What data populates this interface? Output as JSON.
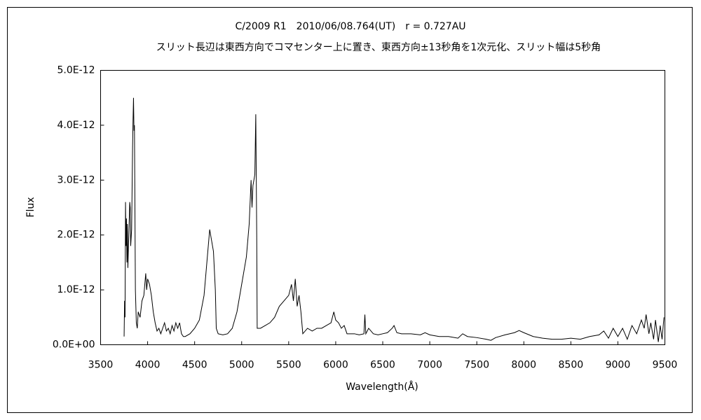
{
  "chart_data": {
    "type": "line",
    "title": "C/2009 R1　2010/06/08.764(UT)　r = 0.727AU",
    "subtitle": "スリット長辺は東西方向でコマセンター上に置き、東西方向±13秒角を1次元化、スリット幅は5秒角",
    "xlabel": "Wavelength(Å)",
    "ylabel": "Flux",
    "xlim": [
      3500,
      9500
    ],
    "xticks": [
      3500,
      4000,
      4500,
      5000,
      5500,
      6000,
      6500,
      7000,
      7500,
      8000,
      8500,
      9000,
      9500
    ],
    "ylim": [
      0,
      5e-12
    ],
    "yticks": [
      {
        "value": 0,
        "label": "0.0E+00"
      },
      {
        "value": 1e-12,
        "label": "1.0E-12"
      },
      {
        "value": 2e-12,
        "label": "2.0E-12"
      },
      {
        "value": 3e-12,
        "label": "3.0E-12"
      },
      {
        "value": 4e-12,
        "label": "4.0E-12"
      },
      {
        "value": 5e-12,
        "label": "5.0E-12"
      }
    ],
    "grid": false,
    "series": [
      {
        "color": "#000000",
        "x": [
          3750,
          3755,
          3760,
          3765,
          3770,
          3775,
          3780,
          3785,
          3790,
          3800,
          3810,
          3815,
          3820,
          3830,
          3840,
          3845,
          3850,
          3855,
          3860,
          3865,
          3870,
          3880,
          3890,
          3900,
          3920,
          3940,
          3960,
          3980,
          3990,
          4000,
          4020,
          4040,
          4060,
          4080,
          4100,
          4120,
          4140,
          4160,
          4180,
          4200,
          4220,
          4240,
          4260,
          4280,
          4300,
          4320,
          4340,
          4360,
          4380,
          4400,
          4450,
          4500,
          4550,
          4600,
          4640,
          4660,
          4680,
          4700,
          4720,
          4730,
          4750,
          4800,
          4850,
          4900,
          4950,
          5000,
          5050,
          5080,
          5100,
          5110,
          5120,
          5140,
          5150,
          5160,
          5165,
          5200,
          5250,
          5300,
          5350,
          5400,
          5450,
          5500,
          5530,
          5550,
          5570,
          5590,
          5610,
          5630,
          5650,
          5700,
          5750,
          5800,
          5850,
          5900,
          5950,
          5980,
          6000,
          6030,
          6060,
          6090,
          6120,
          6200,
          6250,
          6300,
          6310,
          6320,
          6350,
          6400,
          6450,
          6500,
          6550,
          6600,
          6620,
          6650,
          6700,
          6800,
          6900,
          6950,
          7000,
          7100,
          7200,
          7300,
          7350,
          7400,
          7500,
          7600,
          7650,
          7700,
          7800,
          7900,
          7950,
          8000,
          8100,
          8200,
          8300,
          8400,
          8500,
          8600,
          8700,
          8800,
          8850,
          8900,
          8950,
          9000,
          9050,
          9100,
          9150,
          9200,
          9250,
          9280,
          9300,
          9330,
          9350,
          9380,
          9400,
          9430,
          9450,
          9470,
          9490
        ],
        "values": [
          1.5e-13,
          8e-13,
          5e-13,
          2.6e-12,
          1.8e-12,
          2.3e-12,
          1.5e-12,
          2.2e-12,
          1.4e-12,
          2e-12,
          2.6e-12,
          2.5e-12,
          1.8e-12,
          2.1e-12,
          3.6e-12,
          4.1e-12,
          4.5e-12,
          3.9e-12,
          4e-12,
          2.5e-12,
          1e-12,
          4e-13,
          3e-13,
          6e-13,
          5e-13,
          8e-13,
          9e-13,
          1.3e-12,
          1e-12,
          1.2e-12,
          1.1e-12,
          9e-13,
          6e-13,
          4e-13,
          2.5e-13,
          3e-13,
          2e-13,
          3e-13,
          4e-13,
          2.5e-13,
          3e-13,
          2e-13,
          3.5e-13,
          2.5e-13,
          4e-13,
          3e-13,
          4e-13,
          2e-13,
          1.5e-13,
          1.5e-13,
          2e-13,
          3e-13,
          4.5e-13,
          9e-13,
          1.7e-12,
          2.1e-12,
          1.9e-12,
          1.7e-12,
          1e-12,
          3e-13,
          2e-13,
          1.8e-13,
          2e-13,
          3e-13,
          6e-13,
          1.1e-12,
          1.6e-12,
          2.2e-12,
          3e-12,
          2.5e-12,
          2.9e-12,
          3.1e-12,
          4.2e-12,
          2e-12,
          3e-13,
          3e-13,
          3.5e-13,
          4e-13,
          5e-13,
          7e-13,
          8e-13,
          9e-13,
          1.1e-12,
          8e-13,
          1.2e-12,
          7e-13,
          9e-13,
          6e-13,
          2e-13,
          3e-13,
          2.5e-13,
          3e-13,
          3e-13,
          3.5e-13,
          4e-13,
          6e-13,
          4.5e-13,
          4e-13,
          3e-13,
          3.5e-13,
          2e-13,
          2e-13,
          1.8e-13,
          2e-13,
          5.5e-13,
          2e-13,
          3e-13,
          2e-13,
          1.8e-13,
          2e-13,
          2.2e-13,
          3e-13,
          3.5e-13,
          2.2e-13,
          2e-13,
          2e-13,
          1.8e-13,
          2.2e-13,
          1.8e-13,
          1.5e-13,
          1.5e-13,
          1.2e-13,
          2e-13,
          1.5e-13,
          1.3e-13,
          1e-13,
          8e-14,
          1.3e-13,
          1.8e-13,
          2.2e-13,
          2.6e-13,
          2.2e-13,
          1.5e-13,
          1.2e-13,
          1e-13,
          1e-13,
          1.2e-13,
          1e-13,
          1.5e-13,
          1.8e-13,
          2.5e-13,
          1.2e-13,
          3e-13,
          1.5e-13,
          3e-13,
          1e-13,
          3.5e-13,
          2e-13,
          4.5e-13,
          3e-13,
          5.5e-13,
          2e-13,
          4e-13,
          1e-13,
          4.5e-13,
          5e-14,
          3.5e-13,
          1e-13,
          5e-13
        ]
      }
    ]
  }
}
